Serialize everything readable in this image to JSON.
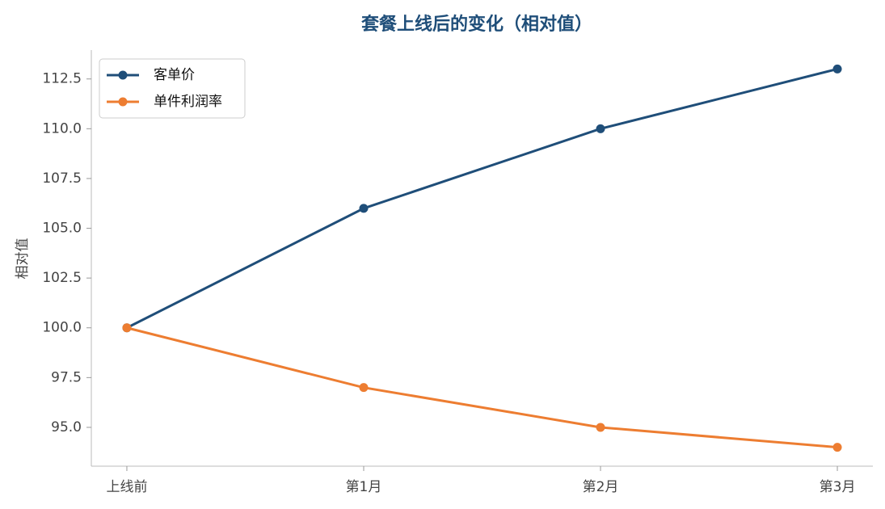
{
  "chart_data": {
    "type": "line",
    "title": "套餐上线后的变化（相对值）",
    "y_label": "相对值",
    "categories": [
      "上线前",
      "第1月",
      "第2月",
      "第3月"
    ],
    "series": [
      {
        "name": "客单价",
        "color": "#1f4e79",
        "values": [
          100,
          106,
          110,
          113
        ]
      },
      {
        "name": "单件利润率",
        "color": "#ed7d31",
        "values": [
          100,
          97,
          95,
          94
        ]
      }
    ],
    "ylim": [
      93.05,
      113.95
    ],
    "yticks": [
      {
        "value": 95,
        "label": "95.0"
      },
      97.5,
      {
        "value": 100,
        "label": "100.0"
      },
      102.5,
      {
        "value": 105,
        "label": "105.0"
      },
      107.5,
      {
        "value": 110,
        "label": "110.0"
      },
      112.5
    ],
    "grid": false,
    "legend": "upper left"
  }
}
